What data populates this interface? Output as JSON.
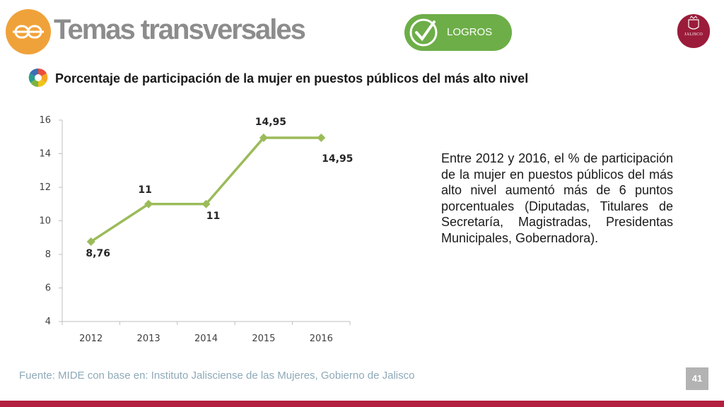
{
  "header": {
    "title": "Temas transversales",
    "badge_label": "LOGROS",
    "logo_icon": "chain-link-icon",
    "seal_icon": "jalisco-seal-icon",
    "seal_text": "JALISCO"
  },
  "chart_section": {
    "subtitle": "Porcentaje de participación de la mujer en puestos públicos del más alto nivel"
  },
  "chart_data": {
    "type": "line",
    "categories": [
      "2012",
      "2013",
      "2014",
      "2015",
      "2016"
    ],
    "values": [
      8.76,
      11,
      11,
      14.95,
      14.95
    ],
    "data_labels": [
      "8,76",
      "11",
      "11",
      "14,95",
      "14,95"
    ],
    "ylim": [
      4,
      16
    ],
    "yticks": [
      4,
      6,
      8,
      10,
      12,
      14,
      16
    ],
    "grid": false,
    "legend": "none",
    "line_color": "#9bbb59"
  },
  "description": "Entre 2012 y 2016, el % de participación de la mujer en puestos públicos del más alto nivel aumentó más de 6 puntos porcentuales (Diputadas, Titulares de Secretaría, Magistradas, Presidentas Municipales, Gobernadora).",
  "footer": {
    "source": "Fuente: MIDE con base en: Instituto Jalisciense de las Mujeres, Gobierno de Jalisco",
    "page_number": "41"
  },
  "colors": {
    "accent_orange": "#f0a23a",
    "badge_green": "#6dae48",
    "brand_maroon": "#b21f3f",
    "title_gray": "#8c8c8c"
  }
}
